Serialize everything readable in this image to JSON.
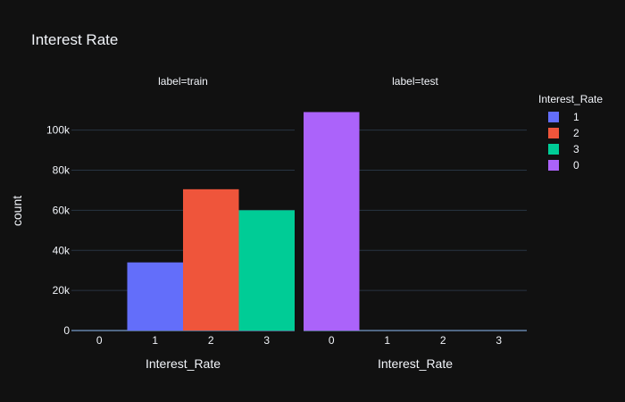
{
  "chart_data": {
    "type": "bar",
    "title": "Interest Rate",
    "ylabel": "count",
    "xlabel": "Interest_Rate",
    "ylim": [
      0,
      115000
    ],
    "y_ticks": [
      {
        "value": 0,
        "label": "0"
      },
      {
        "value": 20000,
        "label": "20k"
      },
      {
        "value": 40000,
        "label": "40k"
      },
      {
        "value": 60000,
        "label": "60k"
      },
      {
        "value": 80000,
        "label": "80k"
      },
      {
        "value": 100000,
        "label": "100k"
      }
    ],
    "legend": {
      "title": "Interest_Rate",
      "placement": "right",
      "items": [
        {
          "name": "1",
          "color": "#636efa"
        },
        {
          "name": "2",
          "color": "#ef553b"
        },
        {
          "name": "3",
          "color": "#00cc96"
        },
        {
          "name": "0",
          "color": "#ab63fa"
        }
      ]
    },
    "facets": [
      {
        "label": "label=train",
        "categories": [
          "0",
          "1",
          "2",
          "3"
        ],
        "bars": [
          {
            "category": "1",
            "series": "1",
            "value": 34000
          },
          {
            "category": "2",
            "series": "2",
            "value": 70500
          },
          {
            "category": "3",
            "series": "3",
            "value": 60000
          }
        ]
      },
      {
        "label": "label=test",
        "categories": [
          "0",
          "1",
          "2",
          "3"
        ],
        "bars": [
          {
            "category": "0",
            "series": "0",
            "value": 109000
          }
        ]
      }
    ]
  }
}
